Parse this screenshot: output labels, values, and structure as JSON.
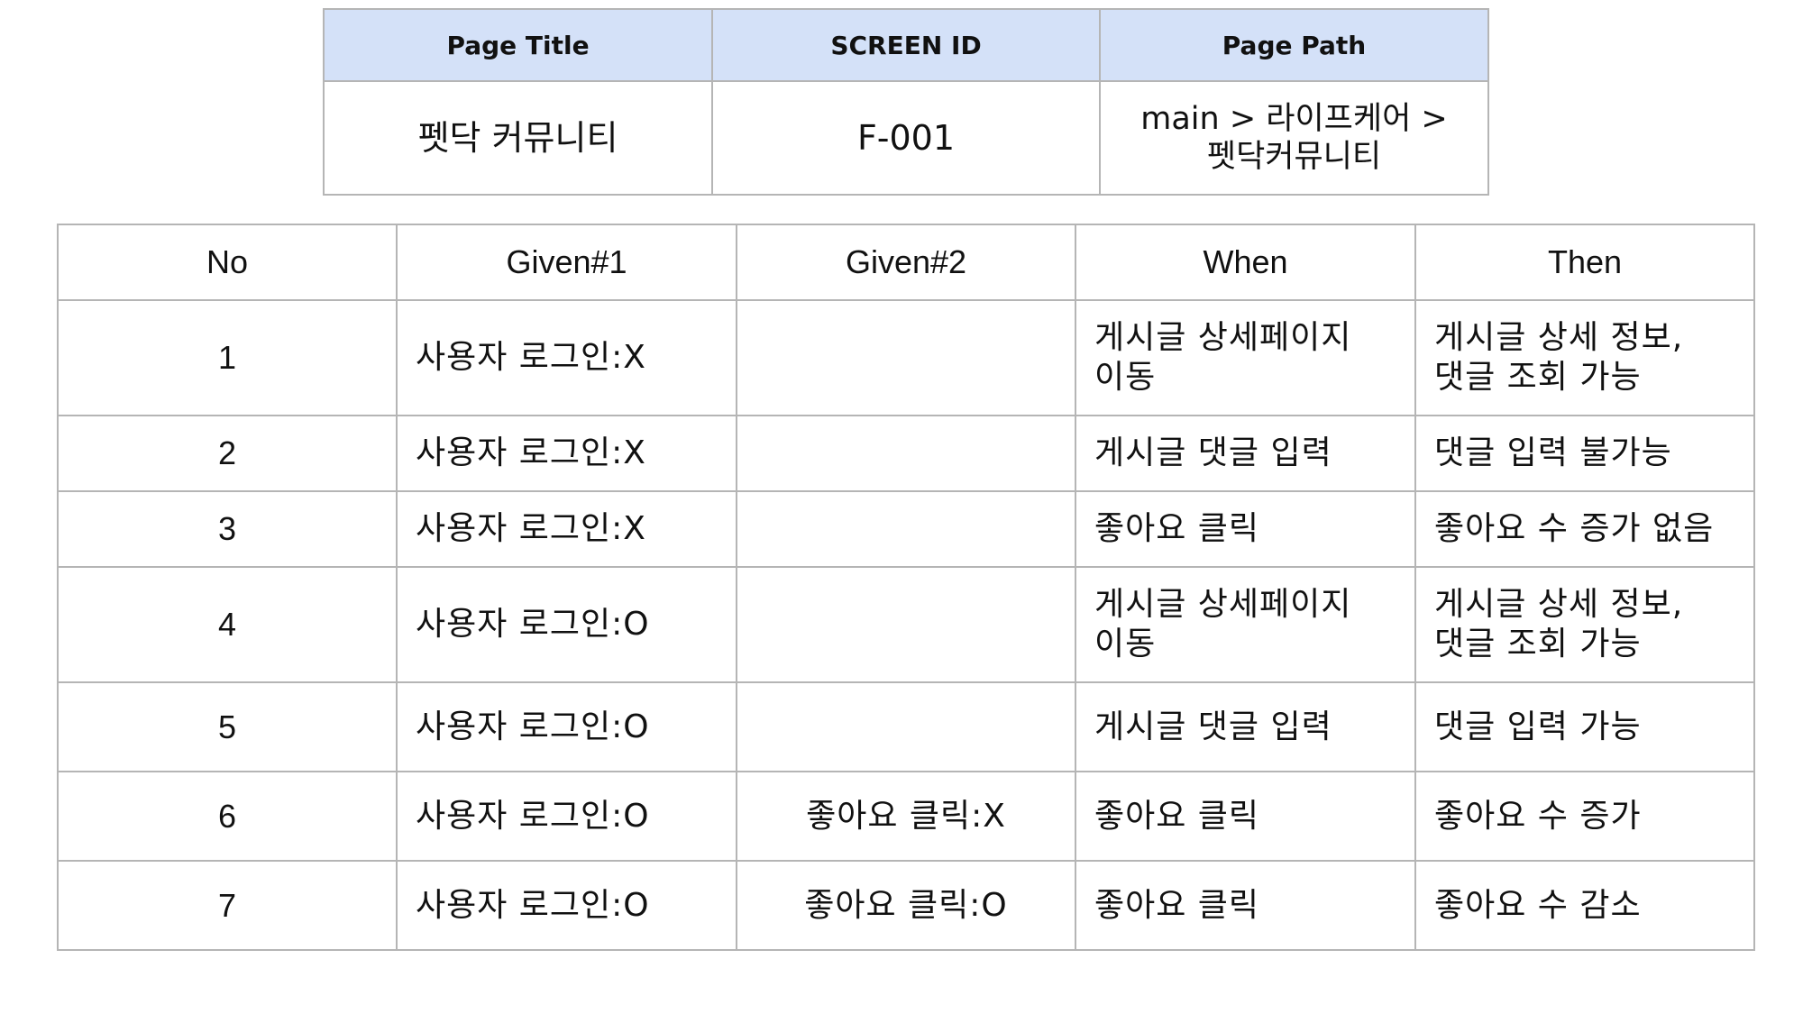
{
  "meta": {
    "headers": [
      "Page Title",
      "SCREEN ID",
      "Page Path"
    ],
    "page_title": "펫닥 커뮤니티",
    "screen_id": "F-001",
    "page_path_line1": "main > 라이프케어 >",
    "page_path_line2": "펫닥커뮤니티"
  },
  "scenarios": {
    "headers": [
      "No",
      "Given#1",
      "Given#2",
      "When",
      "Then"
    ],
    "rows": [
      {
        "no": "1",
        "given1": "사용자 로그인:X",
        "given2": "",
        "when_l1": "게시글 상세페이지",
        "when_l2": "이동",
        "then_l1": "게시글 상세 정보,",
        "then_l2": "댓글 조회 가능"
      },
      {
        "no": "2",
        "given1": "사용자 로그인:X",
        "given2": "",
        "when_l1": "게시글 댓글 입력",
        "then_l1": "댓글 입력 불가능"
      },
      {
        "no": "3",
        "given1": "사용자 로그인:X",
        "given2": "",
        "when_l1": "좋아요 클릭",
        "then_l1": "좋아요 수 증가 없음"
      },
      {
        "no": "4",
        "given1": "사용자 로그인:O",
        "given2": "",
        "when_l1": "게시글 상세페이지",
        "when_l2": "이동",
        "then_l1": "게시글 상세 정보,",
        "then_l2": "댓글 조회 가능"
      },
      {
        "no": "5",
        "given1": "사용자 로그인:O",
        "given2": "",
        "when_l1": "게시글 댓글 입력",
        "then_l1": "댓글 입력 가능"
      },
      {
        "no": "6",
        "given1": "사용자 로그인:O",
        "given2": "좋아요 클릭:X",
        "when_l1": "좋아요 클릭",
        "then_l1": "좋아요 수 증가"
      },
      {
        "no": "7",
        "given1": "사용자 로그인:O",
        "given2": "좋아요 클릭:O",
        "when_l1": "좋아요 클릭",
        "then_l1": "좋아요 수 감소"
      }
    ]
  }
}
